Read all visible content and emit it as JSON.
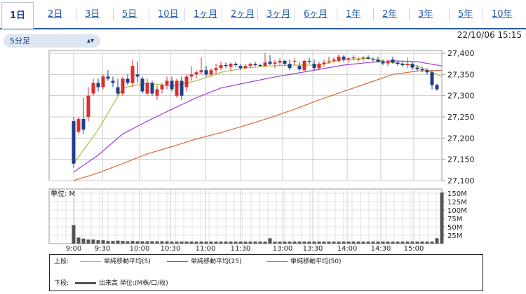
{
  "tabs": [
    "1日",
    "2日",
    "3日",
    "5日",
    "10日",
    "1ヶ月",
    "2ヶ月",
    "3ヶ月",
    "6ヶ月",
    "1年",
    "2年",
    "3年",
    "5年",
    "10年"
  ],
  "interval_select": {
    "label": "5分足",
    "icon": "chevron-updown-icon"
  },
  "timestamp": "22/10/06 15:15",
  "legend": {
    "upper_label": "上段:",
    "lower_label": "下段:",
    "ma5": "単純移動平均(5)",
    "ma25": "単純移動平均(25)",
    "ma50": "単純移動平均(50)",
    "volume": "出来高 単位:(M株/口/枚)"
  },
  "colors": {
    "up": "#d9302e",
    "down": "#1f3f8a",
    "ma5": "#a9c23a",
    "ma25": "#9b3fd6",
    "ma50": "#e0663a",
    "volume": "#555555",
    "accent": "#2b59a7"
  },
  "chart_data": [
    {
      "type": "candlestick",
      "title": "",
      "ylim": [
        27100,
        27400
      ],
      "yticks": [
        "27,100",
        "27,150",
        "27,200",
        "27,250",
        "27,300",
        "27,350",
        "27,400"
      ],
      "grid": true,
      "candles": [
        [
          27240,
          27250,
          27130,
          27140
        ],
        [
          27215,
          27250,
          27210,
          27245
        ],
        [
          27245,
          27295,
          27210,
          27220
        ],
        [
          27250,
          27320,
          27240,
          27300
        ],
        [
          27305,
          27340,
          27300,
          27330
        ],
        [
          27330,
          27340,
          27310,
          27320
        ],
        [
          27320,
          27350,
          27315,
          27345
        ],
        [
          27345,
          27360,
          27335,
          27340
        ],
        [
          27335,
          27345,
          27320,
          27330
        ],
        [
          27320,
          27340,
          27300,
          27305
        ],
        [
          27305,
          27345,
          27300,
          27340
        ],
        [
          27340,
          27350,
          27325,
          27330
        ],
        [
          27330,
          27385,
          27320,
          27370
        ],
        [
          27350,
          27380,
          27330,
          27345
        ],
        [
          27340,
          27345,
          27305,
          27310
        ],
        [
          27305,
          27340,
          27300,
          27330
        ],
        [
          27330,
          27335,
          27300,
          27305
        ],
        [
          27300,
          27325,
          27290,
          27315
        ],
        [
          27315,
          27330,
          27305,
          27325
        ],
        [
          27325,
          27345,
          27315,
          27335
        ],
        [
          27335,
          27345,
          27310,
          27315
        ],
        [
          27300,
          27340,
          27295,
          27335
        ],
        [
          27335,
          27345,
          27290,
          27300
        ],
        [
          27320,
          27350,
          27310,
          27345
        ],
        [
          27345,
          27370,
          27335,
          27350
        ],
        [
          27350,
          27360,
          27340,
          27355
        ],
        [
          27355,
          27390,
          27350,
          27360
        ],
        [
          27360,
          27370,
          27345,
          27350
        ],
        [
          27350,
          27365,
          27345,
          27360
        ],
        [
          27360,
          27375,
          27350,
          27365
        ],
        [
          27365,
          27380,
          27360,
          27372
        ],
        [
          27372,
          27378,
          27365,
          27370
        ],
        [
          27368,
          27378,
          27358,
          27375
        ],
        [
          27375,
          27380,
          27368,
          27372
        ],
        [
          27370,
          27375,
          27360,
          27365
        ],
        [
          27365,
          27375,
          27362,
          27370
        ],
        [
          27370,
          27378,
          27365,
          27375
        ],
        [
          27375,
          27380,
          27368,
          27372
        ],
        [
          27372,
          27375,
          27368,
          27370
        ],
        [
          27370,
          27400,
          27368,
          27378
        ],
        [
          27380,
          27395,
          27372,
          27375
        ],
        [
          27375,
          27385,
          27365,
          27378
        ],
        [
          27378,
          27388,
          27370,
          27382
        ],
        [
          27382,
          27385,
          27372,
          27375
        ],
        [
          27375,
          27385,
          27360,
          27365
        ],
        [
          27380,
          27388,
          27372,
          27382
        ],
        [
          27370,
          27380,
          27358,
          27362
        ],
        [
          27360,
          27385,
          27358,
          27382
        ],
        [
          27382,
          27390,
          27375,
          27380
        ],
        [
          27375,
          27385,
          27360,
          27365
        ],
        [
          27365,
          27380,
          27360,
          27375
        ],
        [
          27375,
          27385,
          27368,
          27378
        ],
        [
          27380,
          27392,
          27375,
          27382
        ],
        [
          27382,
          27390,
          27378,
          27385
        ],
        [
          27382,
          27398,
          27378,
          27392
        ],
        [
          27392,
          27395,
          27380,
          27385
        ],
        [
          27385,
          27390,
          27378,
          27388
        ],
        [
          27388,
          27395,
          27383,
          27390
        ],
        [
          27385,
          27390,
          27380,
          27386
        ],
        [
          27388,
          27393,
          27382,
          27390
        ],
        [
          27390,
          27395,
          27385,
          27387
        ],
        [
          27387,
          27390,
          27380,
          27385
        ],
        [
          27385,
          27392,
          27378,
          27380
        ],
        [
          27380,
          27385,
          27372,
          27376
        ],
        [
          27376,
          27385,
          27370,
          27380
        ],
        [
          27385,
          27392,
          27375,
          27378
        ],
        [
          27378,
          27383,
          27370,
          27375
        ],
        [
          27375,
          27380,
          27368,
          27372
        ],
        [
          27372,
          27390,
          27365,
          27375
        ],
        [
          27375,
          27380,
          27360,
          27366
        ],
        [
          27366,
          27372,
          27358,
          27362
        ],
        [
          27362,
          27368,
          27355,
          27360
        ],
        [
          27360,
          27365,
          27350,
          27355
        ],
        [
          27355,
          27360,
          27315,
          27325
        ],
        [
          27325,
          27328,
          27312,
          27315
        ]
      ],
      "ma5": [
        [
          0,
          27140
        ],
        [
          5,
          27220
        ],
        [
          10,
          27318
        ],
        [
          15,
          27330
        ],
        [
          20,
          27322
        ],
        [
          25,
          27335
        ],
        [
          30,
          27355
        ],
        [
          35,
          27365
        ],
        [
          40,
          27370
        ],
        [
          45,
          27372
        ],
        [
          50,
          27372
        ],
        [
          55,
          27385
        ],
        [
          60,
          27388
        ],
        [
          65,
          27378
        ],
        [
          70,
          27370
        ],
        [
          75,
          27345
        ]
      ],
      "ma25": [
        [
          0,
          27120
        ],
        [
          5,
          27160
        ],
        [
          10,
          27210
        ],
        [
          15,
          27240
        ],
        [
          20,
          27268
        ],
        [
          25,
          27295
        ],
        [
          30,
          27318
        ],
        [
          35,
          27330
        ],
        [
          40,
          27342
        ],
        [
          45,
          27352
        ],
        [
          50,
          27362
        ],
        [
          55,
          27372
        ],
        [
          60,
          27378
        ],
        [
          65,
          27382
        ],
        [
          70,
          27380
        ],
        [
          75,
          27370
        ]
      ],
      "ma50": [
        [
          0,
          27100
        ],
        [
          5,
          27118
        ],
        [
          10,
          27140
        ],
        [
          15,
          27163
        ],
        [
          20,
          27180
        ],
        [
          25,
          27198
        ],
        [
          30,
          27213
        ],
        [
          35,
          27230
        ],
        [
          40,
          27248
        ],
        [
          45,
          27268
        ],
        [
          50,
          27290
        ],
        [
          55,
          27310
        ],
        [
          60,
          27330
        ],
        [
          65,
          27350
        ],
        [
          70,
          27358
        ],
        [
          75,
          27360
        ]
      ]
    },
    {
      "type": "bar",
      "title": "単位: M",
      "ylim": [
        0,
        150
      ],
      "yticks": [
        "25M",
        "50M",
        "75M",
        "100M",
        "125M",
        "150M"
      ],
      "xticks": [
        "9:00",
        "9:30",
        "10:00",
        "10:30",
        "11:00",
        "11:30",
        "13:00",
        "13:30",
        "14:00",
        "14:30",
        "15:00"
      ],
      "values": [
        55,
        18,
        15,
        12,
        12,
        10,
        10,
        8,
        8,
        9,
        8,
        7,
        8,
        7,
        7,
        7,
        7,
        7,
        7,
        7,
        6,
        6,
        6,
        6,
        6,
        6,
        6,
        6,
        6,
        6,
        6,
        6,
        6,
        6,
        6,
        6,
        6,
        6,
        6,
        6,
        16,
        6,
        6,
        6,
        6,
        6,
        6,
        6,
        6,
        6,
        6,
        6,
        6,
        6,
        6,
        6,
        6,
        6,
        6,
        6,
        6,
        6,
        6,
        6,
        6,
        6,
        6,
        6,
        6,
        6,
        6,
        6,
        6,
        6,
        16,
        152
      ]
    }
  ]
}
